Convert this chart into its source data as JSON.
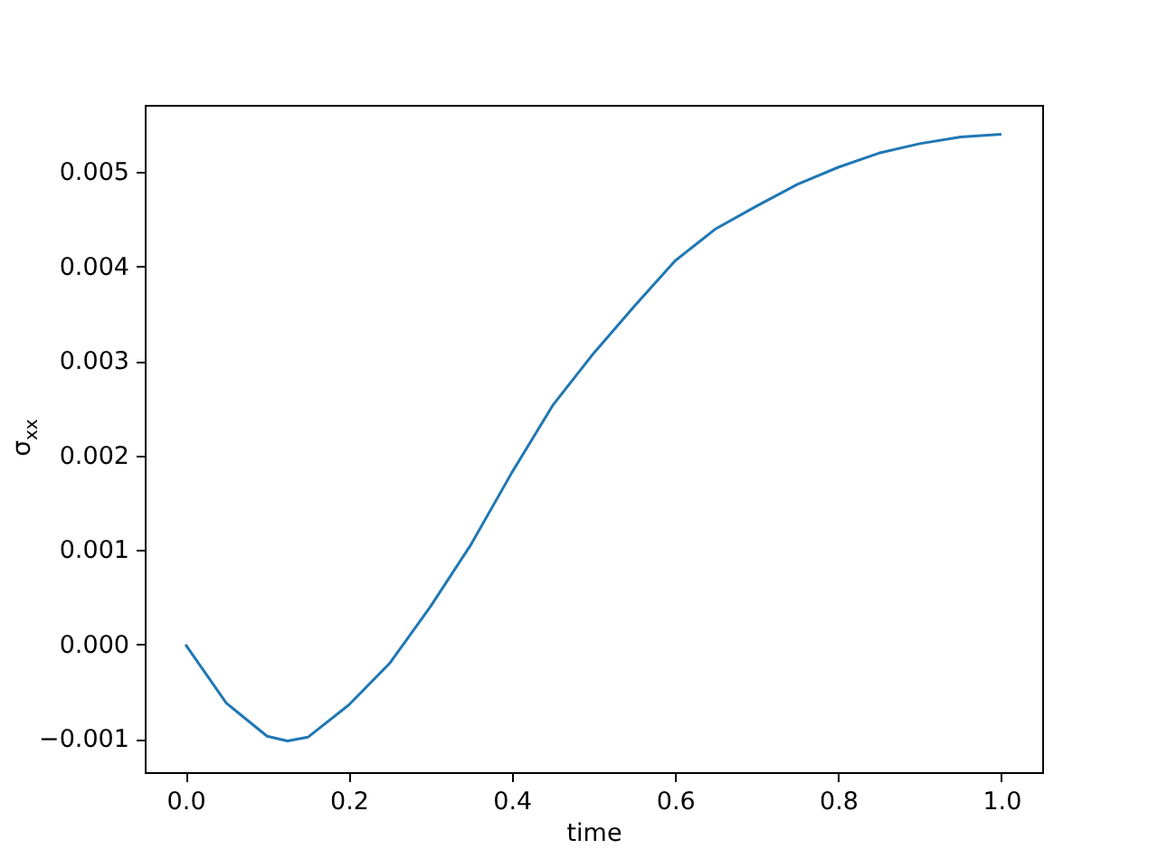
{
  "chart_data": {
    "type": "line",
    "xlabel": "time",
    "ylabel": "σ$_{xx}$",
    "x": [
      0,
      0.05,
      0.1,
      0.125,
      0.15,
      0.2,
      0.25,
      0.3,
      0.35,
      0.4,
      0.45,
      0.5,
      0.55,
      0.6,
      0.65,
      0.7,
      0.75,
      0.8,
      0.85,
      0.9,
      0.95,
      1.0
    ],
    "series": [
      {
        "color": "#1f77b4",
        "values": [
          0,
          -0.00062,
          -0.00097,
          -0.00102,
          -0.00098,
          -0.00064,
          -0.0002,
          0.0004,
          0.00106,
          0.00182,
          0.00253,
          0.00308,
          0.00358,
          0.00406,
          0.0044,
          0.00464,
          0.00487,
          0.00505,
          0.0052,
          0.0053,
          0.00537,
          0.0054
        ]
      }
    ],
    "xlim": [
      -0.05,
      1.05
    ],
    "ylim": [
      -0.00135,
      0.00571
    ],
    "xticks": [
      {
        "value": 0,
        "label": "0.0"
      },
      {
        "value": 0.2,
        "label": "0.2"
      },
      {
        "value": 0.4,
        "label": "0.4"
      },
      {
        "value": 0.6,
        "label": "0.6"
      },
      {
        "value": 0.8,
        "label": "0.8"
      },
      {
        "value": 1.0,
        "label": "1.0"
      }
    ],
    "yticks": [
      {
        "value": -0.001,
        "label": "−0.001"
      },
      {
        "value": 0,
        "label": "0.000"
      },
      {
        "value": 0.001,
        "label": "0.001"
      },
      {
        "value": 0.002,
        "label": "0.002"
      },
      {
        "value": 0.003,
        "label": "0.003"
      },
      {
        "value": 0.004,
        "label": "0.004"
      },
      {
        "value": 0.005,
        "label": "0.005"
      }
    ],
    "grid": false,
    "marker": "none",
    "line_style": "solid"
  }
}
